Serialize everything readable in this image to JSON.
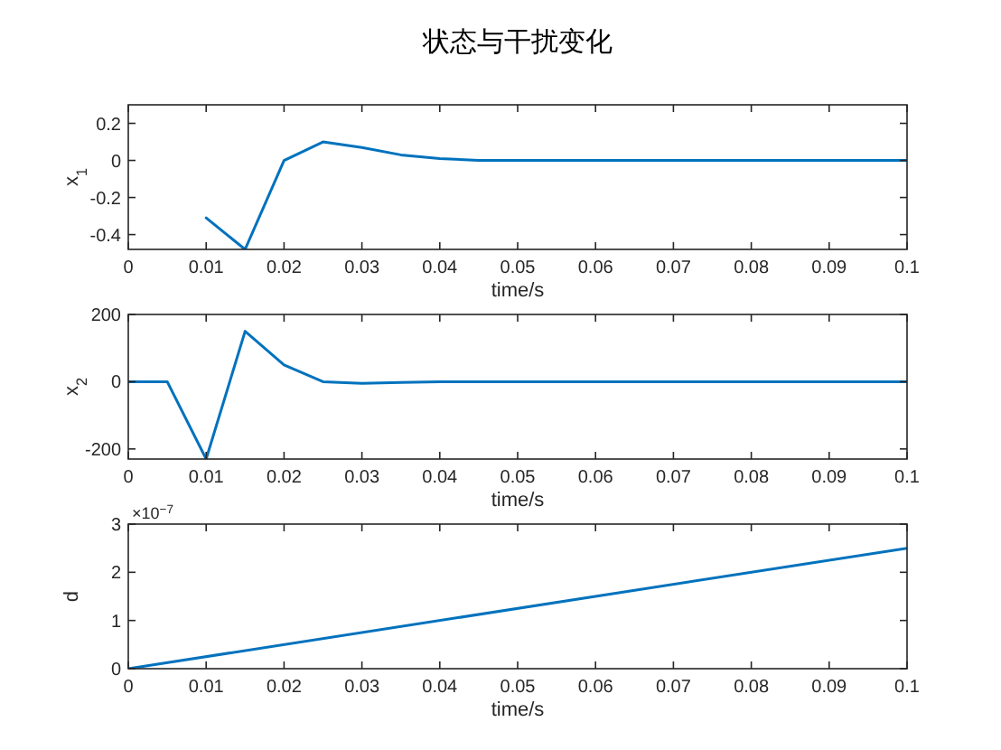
{
  "chart_data": [
    {
      "type": "line",
      "title": "状态与干扰变化",
      "xlabel": "time/s",
      "ylabel": "x$_{1}$",
      "color": "#0072bd",
      "xlim": [
        0,
        0.1
      ],
      "ylim": [
        -0.48,
        0.3
      ],
      "xticks": [
        0,
        0.01,
        0.02,
        0.03,
        0.04,
        0.05,
        0.06,
        0.07,
        0.08,
        0.09,
        0.1
      ],
      "yticks": [
        -0.4,
        -0.2,
        0,
        0.2
      ],
      "x": [
        0.01,
        0.015,
        0.02,
        0.025,
        0.03,
        0.035,
        0.04,
        0.045,
        0.05,
        0.055,
        0.06,
        0.065,
        0.07,
        0.075,
        0.08,
        0.085,
        0.09,
        0.095,
        0.1
      ],
      "values": [
        -0.31,
        -0.48,
        0,
        0.1,
        0.07,
        0.03,
        0.01,
        0,
        0,
        0,
        0,
        0,
        0,
        0,
        0,
        0,
        0,
        0,
        0
      ]
    },
    {
      "type": "line",
      "xlabel": "time/s",
      "ylabel": "x$_{2}$",
      "color": "#0072bd",
      "xlim": [
        0,
        0.1
      ],
      "ylim": [
        -230,
        200
      ],
      "xticks": [
        0,
        0.01,
        0.02,
        0.03,
        0.04,
        0.05,
        0.06,
        0.07,
        0.08,
        0.09,
        0.1
      ],
      "yticks": [
        -200,
        0,
        200
      ],
      "x": [
        0,
        0.005,
        0.01,
        0.015,
        0.02,
        0.025,
        0.03,
        0.035,
        0.04,
        0.045,
        0.05,
        0.055,
        0.06,
        0.065,
        0.07,
        0.075,
        0.08,
        0.085,
        0.09,
        0.095,
        0.1
      ],
      "values": [
        0,
        0,
        -230,
        150,
        50,
        0,
        -5,
        -2,
        0,
        0,
        0,
        0,
        0,
        0,
        0,
        0,
        0,
        0,
        0,
        0,
        0
      ]
    },
    {
      "type": "line",
      "xlabel": "time/s",
      "ylabel": "d",
      "color": "#0072bd",
      "xlim": [
        0,
        0.1
      ],
      "ylim": [
        0,
        3
      ],
      "xticks": [
        0,
        0.01,
        0.02,
        0.03,
        0.04,
        0.05,
        0.06,
        0.07,
        0.08,
        0.09,
        0.1
      ],
      "yticks": [
        0,
        1,
        2,
        3
      ],
      "x": [
        0,
        0.1
      ],
      "values": [
        0,
        2.5
      ],
      "annotations": [
        "×10$^{−7}$"
      ]
    }
  ]
}
